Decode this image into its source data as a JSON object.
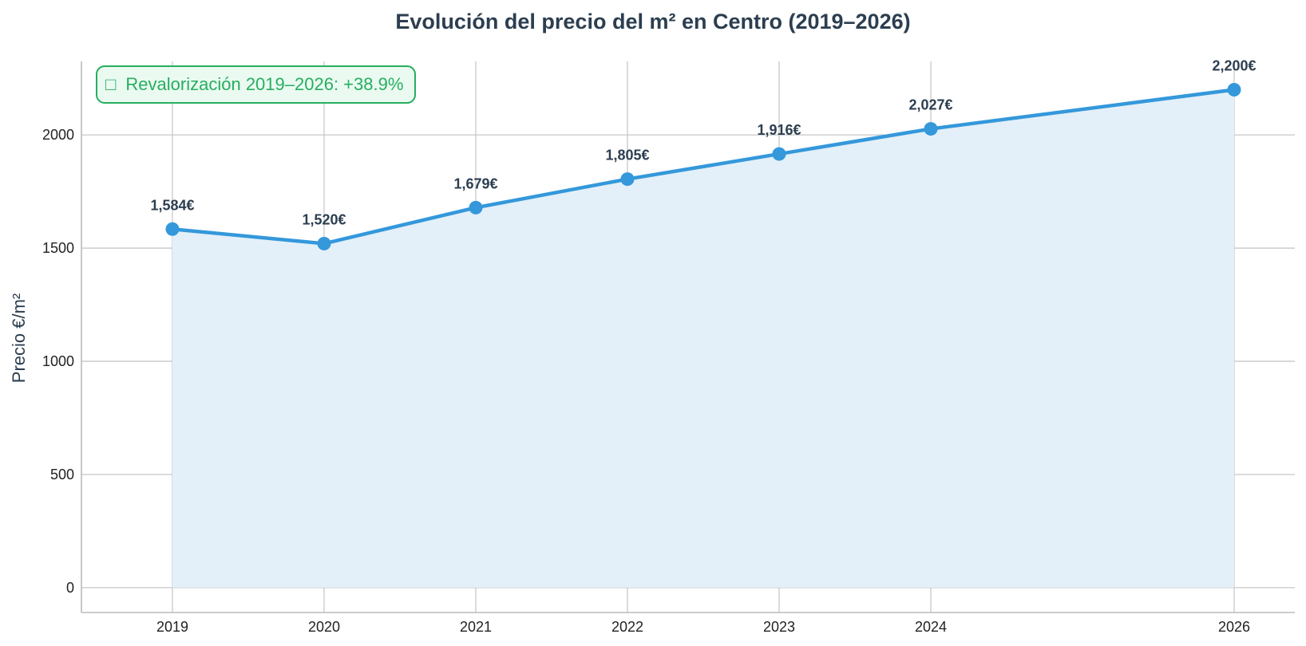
{
  "chart_data": {
    "type": "line",
    "title": "Evolución del precio del m² en Centro (2019–2026)",
    "xlabel": "",
    "ylabel": "Precio €/m²",
    "x": [
      2019,
      2020,
      2021,
      2022,
      2023,
      2024,
      2026
    ],
    "series": [
      {
        "values": [
          1584,
          1520,
          1679,
          1805,
          1916,
          2027,
          2200
        ],
        "labels": [
          "1,584€",
          "1,520€",
          "1,679€",
          "1,805€",
          "1,916€",
          "2,027€",
          "2,200€"
        ],
        "color": "#3498db",
        "fill_color": "#e3f0f9",
        "area_filled": true,
        "markers": true
      }
    ],
    "x_ticks": [
      2019,
      2020,
      2021,
      2022,
      2023,
      2024,
      2026
    ],
    "y_ticks": [
      0,
      500,
      1000,
      1500,
      2000
    ],
    "xlim": [
      2018.4,
      2026.4
    ],
    "ylim": [
      -110,
      2325
    ],
    "grid": true,
    "annotation": {
      "icon": "□",
      "text": "Revalorización 2019–2026: +38.9%",
      "color": "#27ae60",
      "background": "#eafaf1",
      "placement": "top-left"
    }
  }
}
